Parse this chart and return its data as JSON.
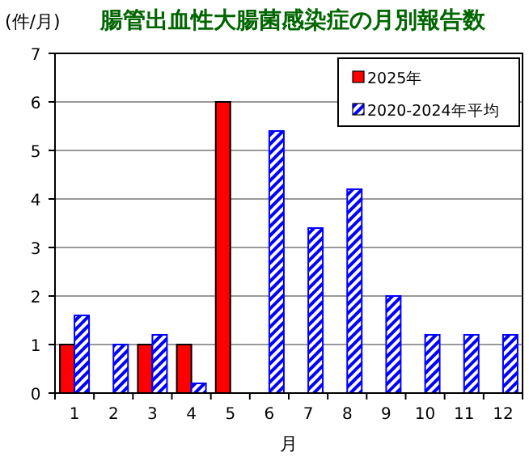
{
  "chart_data": {
    "type": "bar",
    "title": "腸管出血性大腸菌感染症の月別報告数",
    "ylabel": "(件/月)",
    "xlabel": "月",
    "categories": [
      "1",
      "2",
      "3",
      "4",
      "5",
      "6",
      "7",
      "8",
      "9",
      "10",
      "11",
      "12"
    ],
    "series": [
      {
        "name": "2025年",
        "color": "#ff0000",
        "values": [
          1,
          0,
          1,
          1,
          6,
          null,
          null,
          null,
          null,
          null,
          null,
          null
        ]
      },
      {
        "name": "2020-2024年平均",
        "color": "#0000ff",
        "values": [
          1.6,
          1.0,
          1.2,
          0.2,
          0,
          5.4,
          3.4,
          4.2,
          2.0,
          1.2,
          1.2,
          1.2
        ]
      }
    ],
    "ylim": [
      0,
      7
    ],
    "yticks": [
      0,
      1,
      2,
      3,
      4,
      5,
      6,
      7
    ],
    "grid": "y",
    "legend": "top right"
  }
}
